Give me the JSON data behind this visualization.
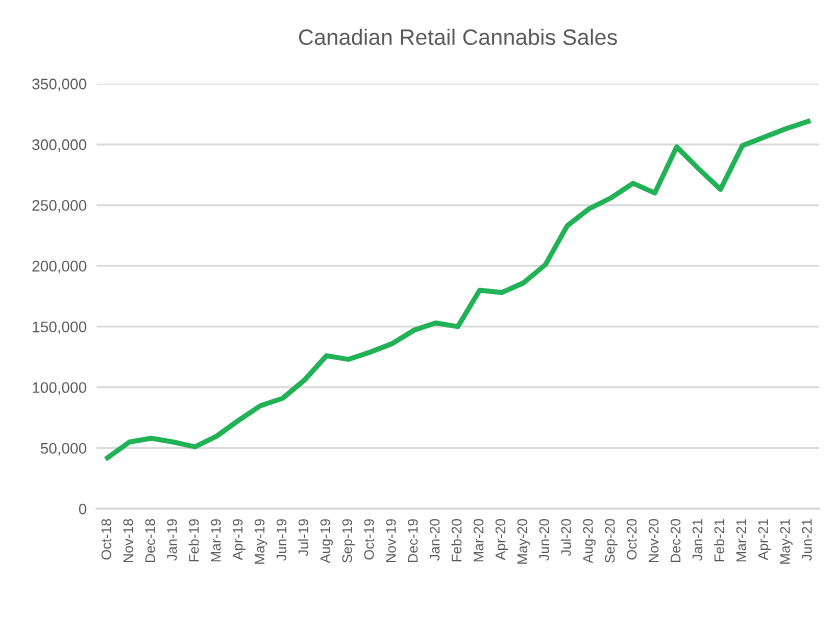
{
  "chart_data": {
    "type": "line",
    "title": "Canadian Retail Cannabis Sales",
    "categories": [
      "Oct-18",
      "Nov-18",
      "Dec-18",
      "Jan-19",
      "Feb-19",
      "Mar-19",
      "Apr-19",
      "May-19",
      "Jun-19",
      "Jul-19",
      "Aug-19",
      "Sep-19",
      "Oct-19",
      "Nov-19",
      "Dec-19",
      "Jan-20",
      "Feb-20",
      "Mar-20",
      "Apr-20",
      "May-20",
      "Jun-20",
      "Jul-20",
      "Aug-20",
      "Sep-20",
      "Oct-20",
      "Nov-20",
      "Dec-20",
      "Jan-21",
      "Feb-21",
      "Mar-21",
      "Apr-21",
      "May-21",
      "Jun-21"
    ],
    "series": [
      {
        "color": "#21b256",
        "values": [
          42000,
          55000,
          58000,
          55000,
          51000,
          60000,
          73000,
          85000,
          91000,
          106000,
          126000,
          123000,
          129000,
          136000,
          147000,
          153000,
          150000,
          180000,
          178000,
          186000,
          201000,
          233000,
          247000,
          256000,
          268000,
          260000,
          298000,
          280000,
          263000,
          299000,
          306000,
          313000,
          319000
        ]
      }
    ],
    "ylim": [
      0,
      350000
    ],
    "yticks": [
      {
        "value": 0,
        "label": "0"
      },
      {
        "value": 50000,
        "label": "50,000"
      },
      {
        "value": 100000,
        "label": "100,000"
      },
      {
        "value": 150000,
        "label": "150,000"
      },
      {
        "value": 200000,
        "label": "200,000"
      },
      {
        "value": 250000,
        "label": "250,000"
      },
      {
        "value": 300000,
        "label": "300,000"
      },
      {
        "value": 350000,
        "label": "350,000"
      }
    ],
    "grid": "y",
    "marker": "none",
    "line_style": "solid"
  }
}
